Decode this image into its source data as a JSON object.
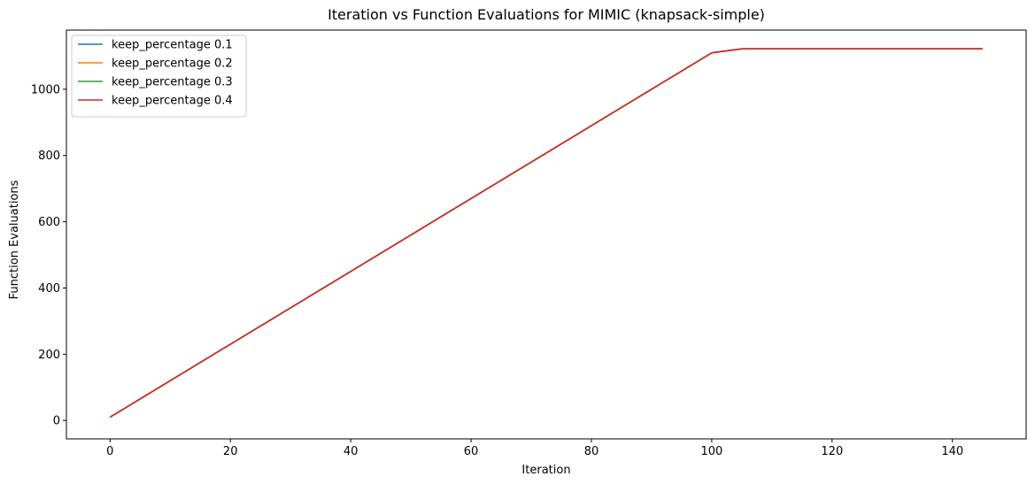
{
  "chart_data": {
    "type": "line",
    "title": "Iteration vs Function Evaluations for MIMIC (knapsack-simple)",
    "xlabel": "Iteration",
    "ylabel": "Function Evaluations",
    "xlim": [
      -7.25,
      152.25
    ],
    "ylim": [
      -55.6,
      1178.6
    ],
    "xticks": [
      0,
      20,
      40,
      60,
      80,
      100,
      120,
      140
    ],
    "yticks": [
      0,
      200,
      400,
      600,
      800,
      1000
    ],
    "grid": false,
    "legend_position": "top-left",
    "series": [
      {
        "name": "keep_percentage 0.1",
        "color": "#1f77b4",
        "x": [
          0,
          100,
          105,
          145
        ],
        "y": [
          10,
          1110,
          1122,
          1122
        ]
      },
      {
        "name": "keep_percentage 0.2",
        "color": "#ff7f0e",
        "x": [
          0,
          100,
          105,
          145
        ],
        "y": [
          10,
          1110,
          1122,
          1122
        ]
      },
      {
        "name": "keep_percentage 0.3",
        "color": "#2ca02c",
        "x": [
          0,
          100,
          105,
          145
        ],
        "y": [
          10,
          1110,
          1122,
          1122
        ]
      },
      {
        "name": "keep_percentage 0.4",
        "color": "#d62728",
        "x": [
          0,
          100,
          105,
          145
        ],
        "y": [
          10,
          1110,
          1122,
          1122
        ]
      }
    ]
  }
}
